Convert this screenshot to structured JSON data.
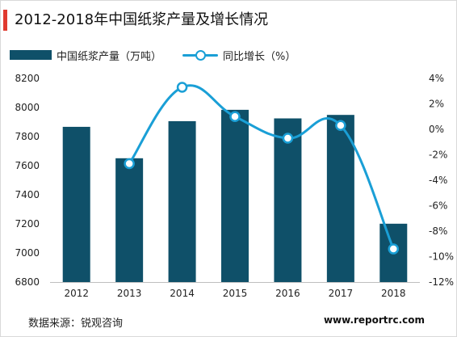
{
  "title": "2012-2018年中国纸浆产量及增长情况",
  "source": "数据来源：锐观咨询",
  "website": "www.reportrc.com",
  "colors": {
    "bar": "#0f5069",
    "line": "#1a9fd6",
    "title_accent": "#e03a2f"
  },
  "chart_data": {
    "type": "bar",
    "categories": [
      "2012",
      "2013",
      "2014",
      "2015",
      "2016",
      "2017",
      "2018"
    ],
    "series": [
      {
        "name": "中国纸浆产量（万吨）",
        "type": "bar",
        "axis": "left",
        "values": [
          7867,
          7651,
          7906,
          7984,
          7925,
          7949,
          7201
        ]
      },
      {
        "name": "同比增长（%）",
        "type": "line",
        "axis": "right",
        "values": [
          null,
          -2.7,
          3.3,
          1.0,
          -0.7,
          0.3,
          -9.4
        ]
      }
    ],
    "ylim": [
      6800,
      8200
    ],
    "yticks": [
      "6800",
      "7000",
      "7200",
      "7400",
      "7600",
      "7800",
      "8000",
      "8200"
    ],
    "y2lim": [
      -12,
      4
    ],
    "y2ticks": [
      "-12%",
      "-10%",
      "-8%",
      "-6%",
      "-4%",
      "-2%",
      "0%",
      "2%",
      "4%"
    ],
    "legend_position": "top-left",
    "grid": false
  }
}
